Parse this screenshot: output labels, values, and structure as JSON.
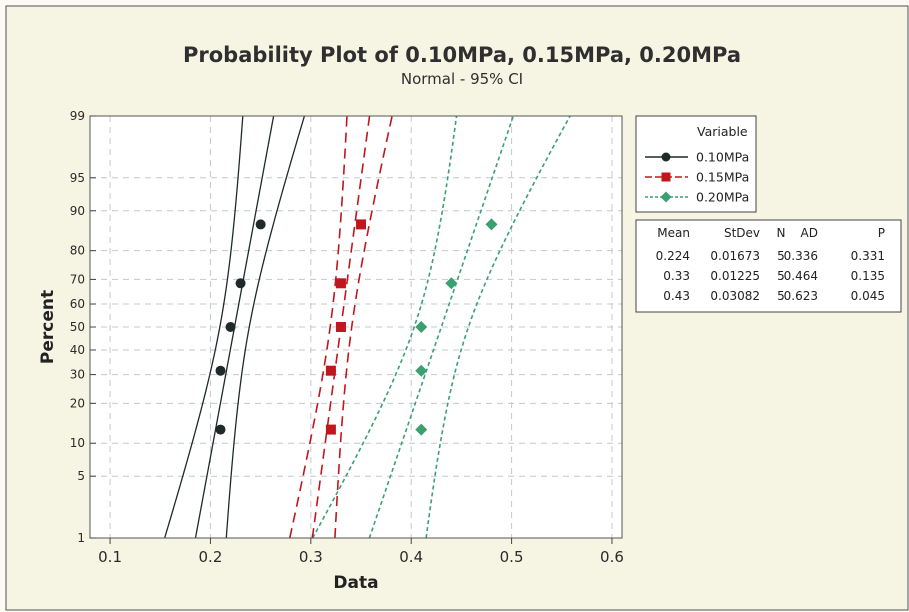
{
  "chart_data": {
    "type": "scatter",
    "title": "Probability Plot of 0.10MPa, 0.15MPa, 0.20MPa",
    "subtitle": "Normal - 95% CI",
    "xlabel": "Data",
    "ylabel": "Percent",
    "xlim": [
      0.08,
      0.61
    ],
    "x_ticks": [
      "0.1",
      "0.2",
      "0.3",
      "0.4",
      "0.5",
      "0.6"
    ],
    "x_tick_values": [
      0.1,
      0.2,
      0.3,
      0.4,
      0.5,
      0.6
    ],
    "ylim": [
      1,
      99
    ],
    "y_scale": "normal-probability",
    "y_ticks": [
      "1",
      "5",
      "10",
      "20",
      "30",
      "40",
      "50",
      "60",
      "70",
      "80",
      "90",
      "95",
      "99"
    ],
    "y_tick_values": [
      1,
      5,
      10,
      20,
      30,
      40,
      50,
      60,
      70,
      80,
      90,
      95,
      99
    ],
    "grid": true,
    "legend": {
      "title": "Variable",
      "placement": "right",
      "entries": [
        "0.10MPa",
        "0.15MPa",
        "0.20MPa"
      ]
    },
    "stats_table": {
      "headers": [
        "Mean",
        "StDev",
        "N",
        "AD",
        "P"
      ],
      "rows": [
        [
          "0.224",
          "0.01673",
          "5",
          "0.336",
          "0.331"
        ],
        [
          "0.33",
          "0.01225",
          "5",
          "0.464",
          "0.135"
        ],
        [
          "0.43",
          "0.03082",
          "5",
          "0.623",
          "0.045"
        ]
      ]
    },
    "series": [
      {
        "name": "0.10MPa",
        "color": "#1f2a2a",
        "marker": "circle",
        "line_style": "solid",
        "mean": 0.224,
        "stdev": 0.01673,
        "n": 5,
        "points": [
          {
            "x": 0.21,
            "y": 12.9
          },
          {
            "x": 0.21,
            "y": 31.5
          },
          {
            "x": 0.22,
            "y": 50
          },
          {
            "x": 0.23,
            "y": 68.5
          },
          {
            "x": 0.25,
            "y": 87.1
          }
        ]
      },
      {
        "name": "0.15MPa",
        "color": "#c0161d",
        "marker": "square",
        "line_style": "dashed",
        "mean": 0.33,
        "stdev": 0.01225,
        "n": 5,
        "points": [
          {
            "x": 0.32,
            "y": 12.9
          },
          {
            "x": 0.32,
            "y": 31.5
          },
          {
            "x": 0.33,
            "y": 50
          },
          {
            "x": 0.33,
            "y": 68.5
          },
          {
            "x": 0.35,
            "y": 87.1
          }
        ]
      },
      {
        "name": "0.20MPa",
        "color": "#3aa070",
        "marker": "diamond",
        "line_style": "dotted-dashed",
        "mean": 0.43,
        "stdev": 0.03082,
        "n": 5,
        "points": [
          {
            "x": 0.41,
            "y": 12.9
          },
          {
            "x": 0.41,
            "y": 31.5
          },
          {
            "x": 0.41,
            "y": 50
          },
          {
            "x": 0.44,
            "y": 68.5
          },
          {
            "x": 0.48,
            "y": 87.1
          }
        ]
      }
    ]
  }
}
